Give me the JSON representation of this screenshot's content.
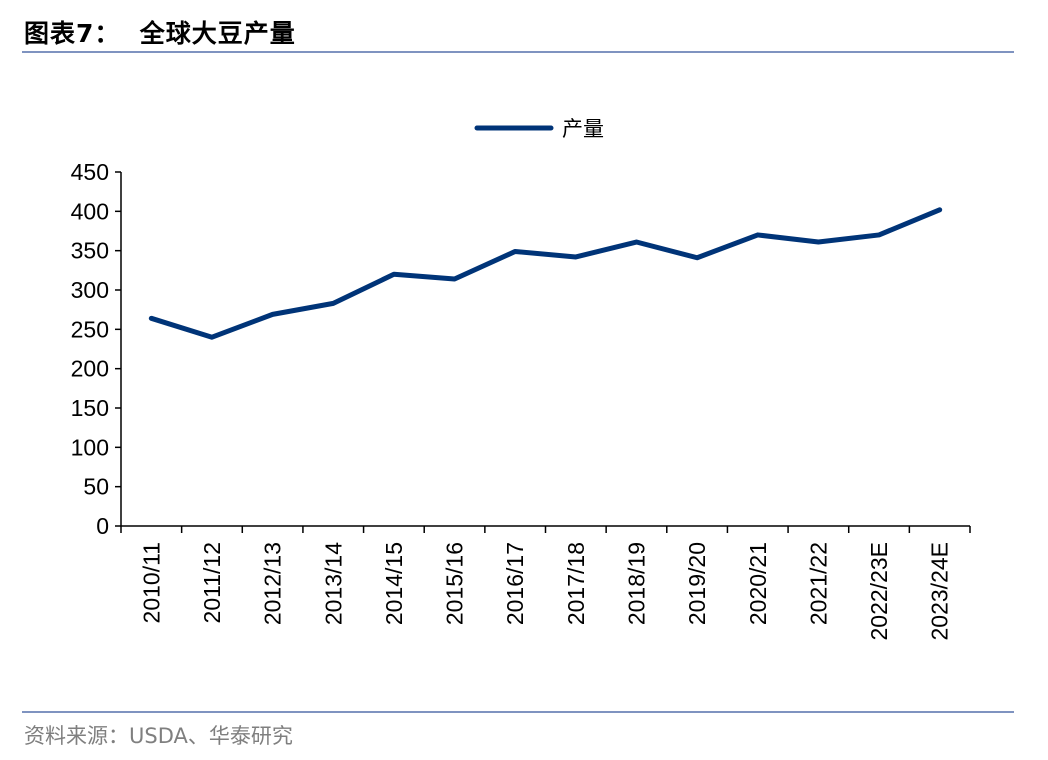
{
  "header": {
    "title": "图表7：  全球大豆产量"
  },
  "footer": {
    "source": "资料来源：USDA、华泰研究"
  },
  "chart_data": {
    "type": "line",
    "title": "全球大豆产量",
    "xlabel": "",
    "ylabel": "",
    "ylim": [
      0,
      450
    ],
    "yticks": [
      0,
      50,
      100,
      150,
      200,
      250,
      300,
      350,
      400,
      450
    ],
    "categories": [
      "2010/11",
      "2011/12",
      "2012/13",
      "2013/14",
      "2014/15",
      "2015/16",
      "2016/17",
      "2017/18",
      "2018/19",
      "2019/20",
      "2020/21",
      "2021/22",
      "2022/23E",
      "2023/24E"
    ],
    "series": [
      {
        "name": "产量",
        "color": "#003478",
        "values": [
          264,
          240,
          269,
          283,
          320,
          314,
          349,
          342,
          361,
          341,
          370,
          361,
          370,
          402
        ]
      }
    ],
    "legend": "top-center",
    "grid": false
  }
}
